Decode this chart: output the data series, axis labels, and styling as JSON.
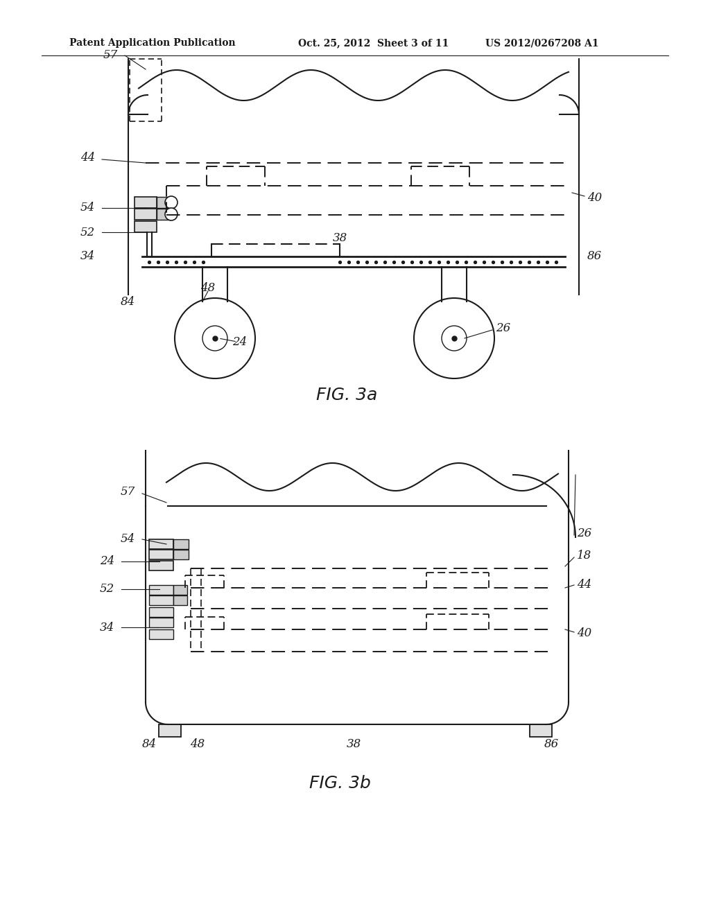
{
  "bg_color": "#ffffff",
  "line_color": "#1a1a1a",
  "header_left": "Patent Application Publication",
  "header_mid": "Oct. 25, 2012  Sheet 3 of 11",
  "header_right": "US 2012/0267208 A1",
  "fig3a_caption": "FIG. 3a",
  "fig3b_caption": "FIG. 3b"
}
